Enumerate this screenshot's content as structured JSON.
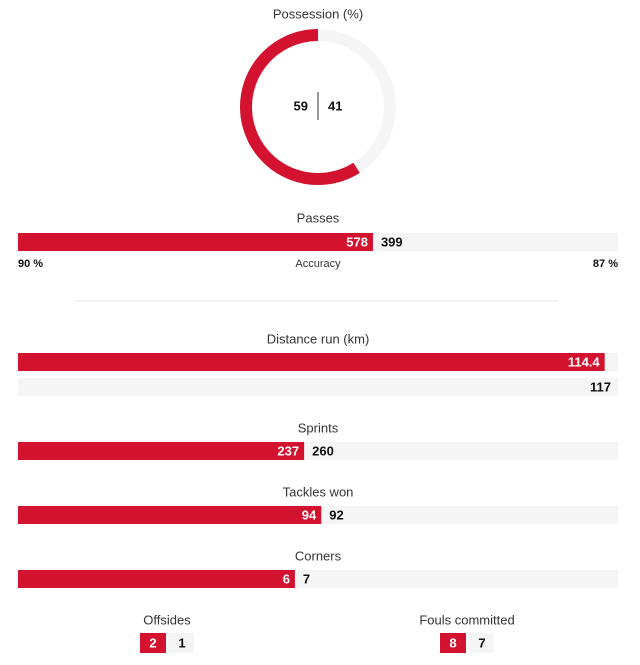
{
  "possession": {
    "title": "Possession (%)",
    "home": 59,
    "away": 41
  },
  "passes": {
    "label": "Passes",
    "home": 578,
    "away": 399,
    "accuracy": {
      "label": "Accuracy",
      "home": "90 %",
      "away": "87 %"
    }
  },
  "distance": {
    "label": "Distance run (km)",
    "home": 114.4,
    "away": 117
  },
  "bars": [
    {
      "label": "Sprints",
      "home": 237,
      "away": 260
    },
    {
      "label": "Tackles won",
      "home": 94,
      "away": 92
    },
    {
      "label": "Corners",
      "home": 6,
      "away": 7
    }
  ],
  "boxes": [
    {
      "label": "Offsides",
      "home": 2,
      "away": 1
    },
    {
      "label": "Fouls committed",
      "home": 8,
      "away": 7
    }
  ]
}
